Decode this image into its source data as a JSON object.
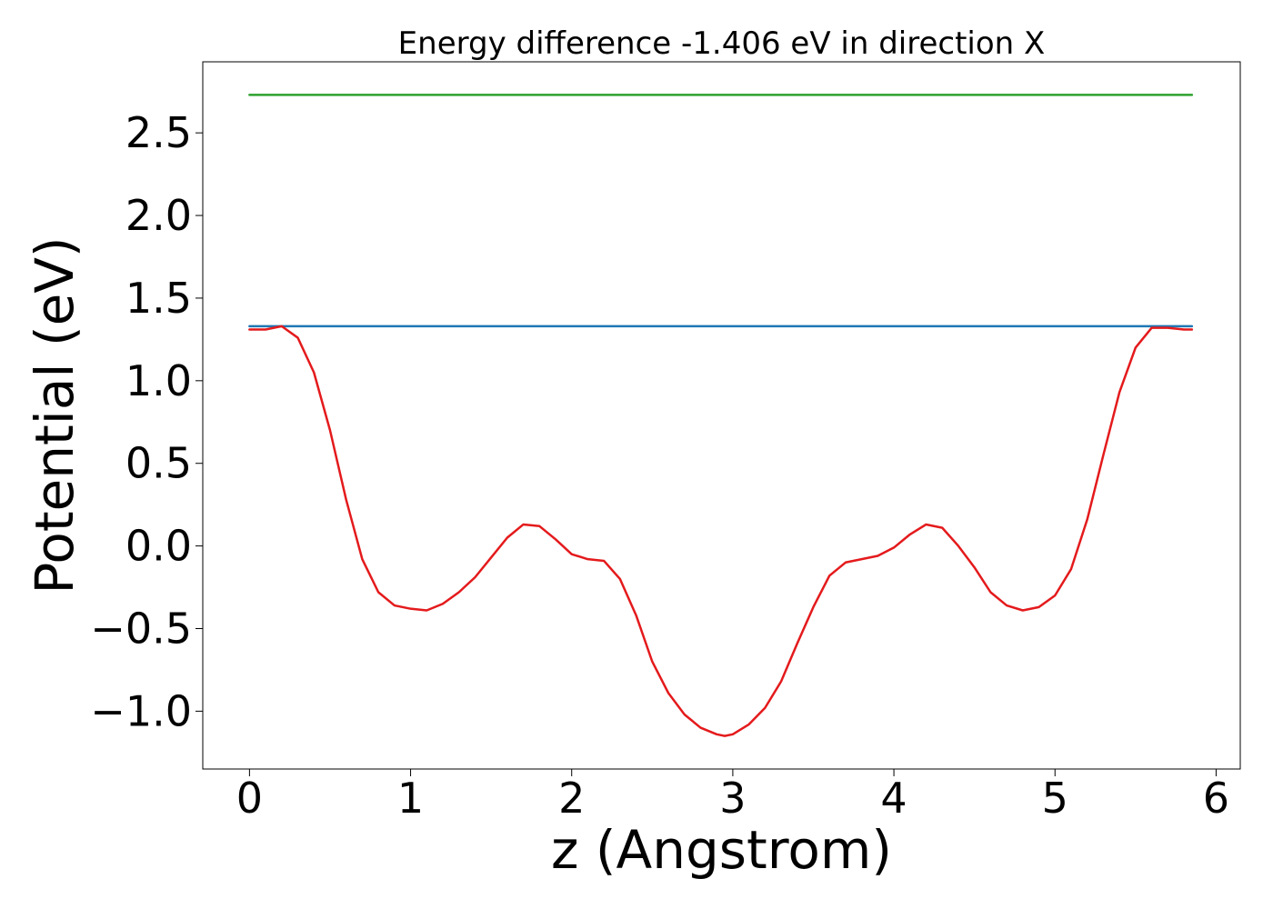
{
  "chart_data": {
    "type": "line",
    "title": "Energy difference -1.406 eV in direction X",
    "xlabel": "z (Angstrom)",
    "ylabel": "Potential (eV)",
    "xlim": [
      -0.29,
      6.15
    ],
    "ylim": [
      -1.35,
      2.93
    ],
    "xticks": [
      0,
      1,
      2,
      3,
      4,
      5,
      6
    ],
    "xtick_labels": [
      "0",
      "1",
      "2",
      "3",
      "4",
      "5",
      "6"
    ],
    "yticks": [
      -1.0,
      -0.5,
      0.0,
      0.5,
      1.0,
      1.5,
      2.0,
      2.5
    ],
    "ytick_labels": [
      "−1.0",
      "−0.5",
      "0.0",
      "0.5",
      "1.0",
      "1.5",
      "2.0",
      "2.5"
    ],
    "grid": false,
    "series": [
      {
        "color": "#2ca02c",
        "x": [
          0,
          5.85
        ],
        "y": [
          2.73,
          2.73
        ]
      },
      {
        "color": "#1f77b4",
        "x": [
          0,
          5.85
        ],
        "y": [
          1.33,
          1.33
        ]
      },
      {
        "color": "#e41a1c",
        "x": [
          0.0,
          0.1,
          0.2,
          0.3,
          0.4,
          0.5,
          0.6,
          0.7,
          0.8,
          0.9,
          1.0,
          1.1,
          1.2,
          1.3,
          1.4,
          1.5,
          1.6,
          1.7,
          1.8,
          1.9,
          2.0,
          2.1,
          2.2,
          2.3,
          2.4,
          2.5,
          2.6,
          2.7,
          2.8,
          2.9,
          2.95,
          3.0,
          3.1,
          3.2,
          3.3,
          3.4,
          3.5,
          3.6,
          3.7,
          3.8,
          3.9,
          4.0,
          4.1,
          4.2,
          4.3,
          4.4,
          4.5,
          4.6,
          4.7,
          4.8,
          4.9,
          5.0,
          5.1,
          5.2,
          5.3,
          5.4,
          5.5,
          5.6,
          5.7,
          5.8,
          5.85
        ],
        "y": [
          1.31,
          1.31,
          1.33,
          1.26,
          1.05,
          0.7,
          0.28,
          -0.08,
          -0.28,
          -0.36,
          -0.38,
          -0.39,
          -0.35,
          -0.28,
          -0.19,
          -0.07,
          0.05,
          0.13,
          0.12,
          0.04,
          -0.05,
          -0.08,
          -0.09,
          -0.2,
          -0.42,
          -0.7,
          -0.89,
          -1.02,
          -1.1,
          -1.14,
          -1.15,
          -1.14,
          -1.08,
          -0.98,
          -0.82,
          -0.59,
          -0.37,
          -0.18,
          -0.1,
          -0.08,
          -0.06,
          -0.01,
          0.07,
          0.13,
          0.11,
          0.0,
          -0.13,
          -0.28,
          -0.36,
          -0.39,
          -0.37,
          -0.3,
          -0.14,
          0.16,
          0.55,
          0.93,
          1.2,
          1.32,
          1.32,
          1.31,
          1.31
        ]
      }
    ]
  }
}
